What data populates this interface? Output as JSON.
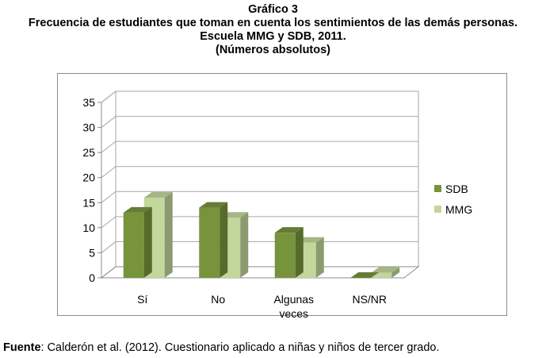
{
  "figure": {
    "title_lines": [
      "Gráfico 3",
      "Frecuencia de estudiantes que toman en cuenta los sentimientos de las demás personas.",
      "Escuela MMG y SDB, 2011.",
      "(Números absolutos)"
    ],
    "source_label": "Fuente",
    "source_text": ": Calderón et al. (2012). Cuestionario aplicado a niñas y niños de tercer grado."
  },
  "chart_data": {
    "type": "bar",
    "style": "3d-clustered-column",
    "title": "",
    "xlabel": "",
    "ylabel": "",
    "categories": [
      [
        "Sí"
      ],
      [
        "No"
      ],
      [
        "Algunas",
        "veces"
      ],
      [
        "NS/NR"
      ]
    ],
    "series": [
      {
        "name": "SDB",
        "values": [
          13,
          14,
          9,
          0
        ],
        "color": "#77933c"
      },
      {
        "name": "MMG",
        "values": [
          16,
          12,
          7,
          1
        ],
        "color": "#c3d69b"
      }
    ],
    "ylim": [
      0,
      35
    ],
    "yticks": [
      0,
      5,
      10,
      15,
      20,
      25,
      30,
      35
    ],
    "grid": true,
    "legend_position": "right"
  }
}
